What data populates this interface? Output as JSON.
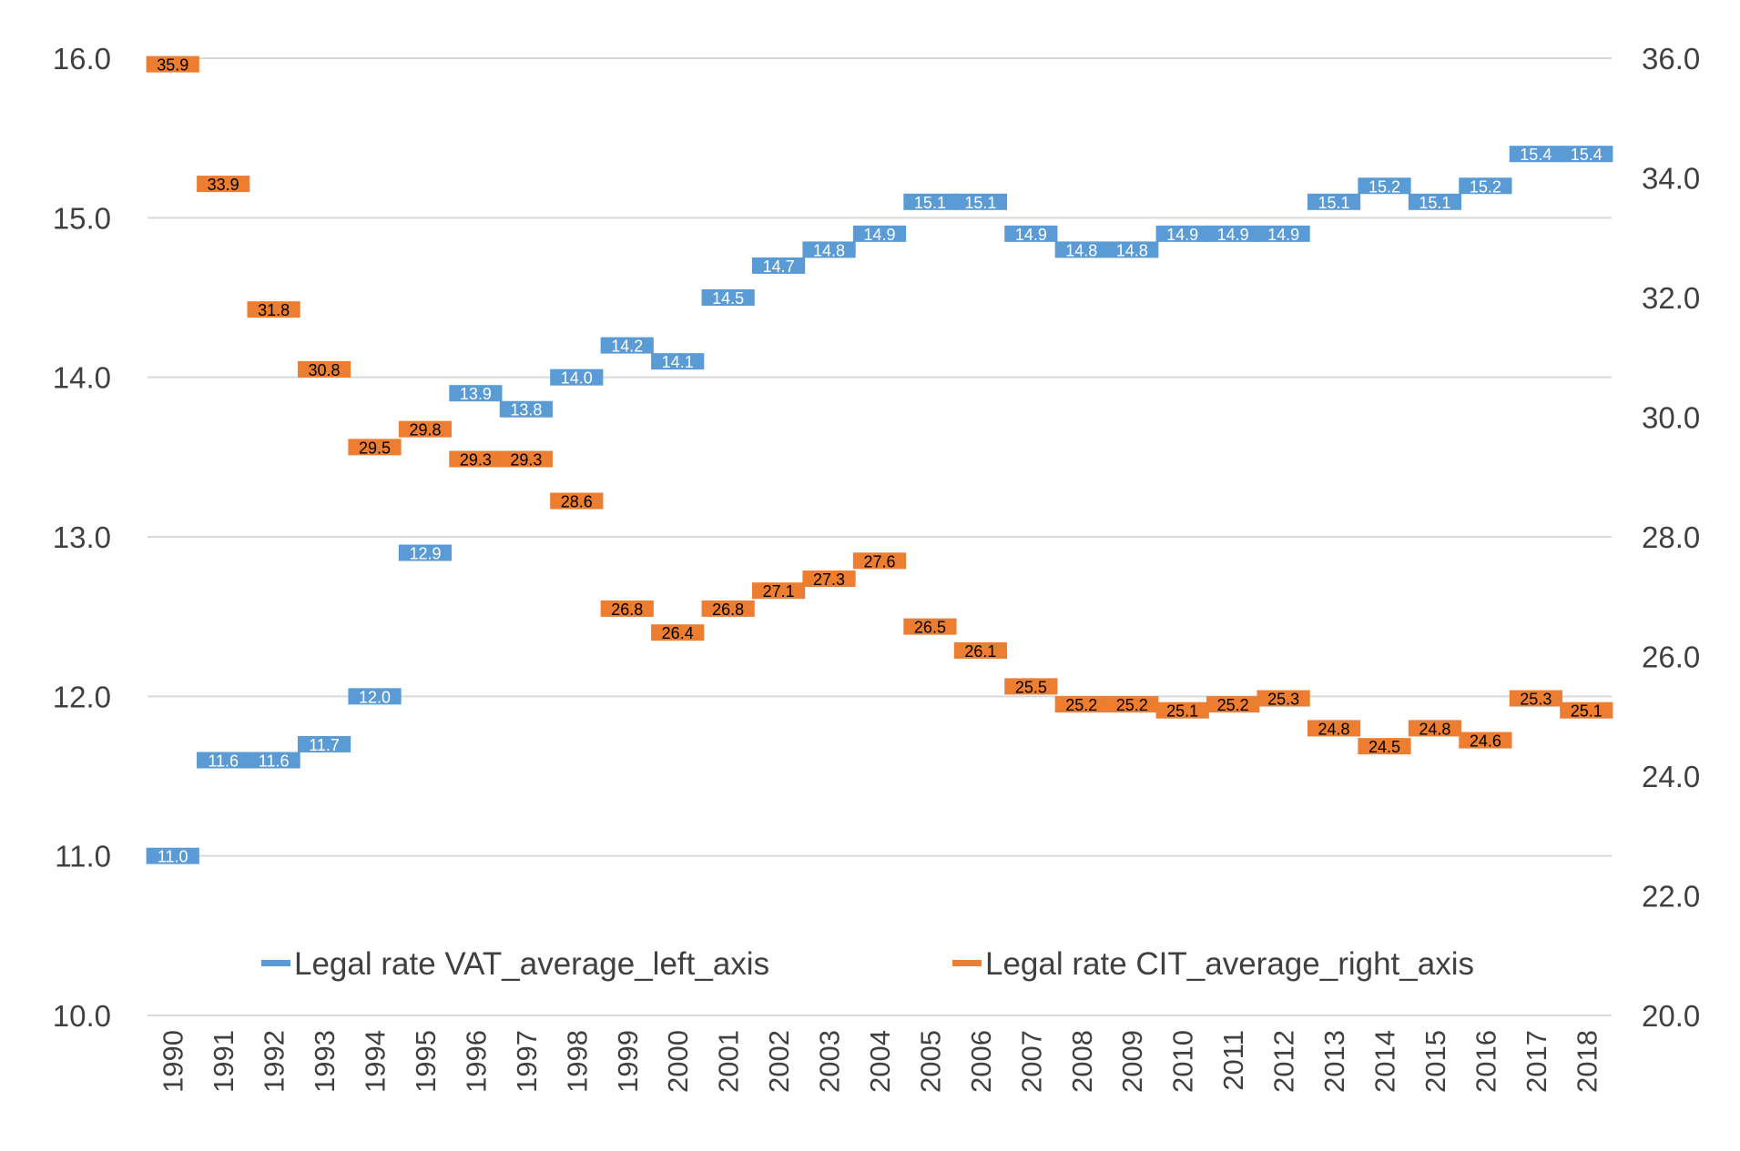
{
  "chart_data": {
    "type": "line",
    "categories": [
      "1990",
      "1991",
      "1992",
      "1993",
      "1994",
      "1995",
      "1996",
      "1997",
      "1998",
      "1999",
      "2000",
      "2001",
      "2002",
      "2003",
      "2004",
      "2005",
      "2006",
      "2007",
      "2008",
      "2009",
      "2010",
      "2011",
      "2012",
      "2013",
      "2014",
      "2015",
      "2016",
      "2017",
      "2018"
    ],
    "series": [
      {
        "name": "Legal rate VAT_average_left_axis",
        "axis": "left",
        "color": "#5B9BD5",
        "values": [
          11.0,
          11.6,
          11.6,
          11.7,
          12.0,
          12.9,
          13.9,
          13.8,
          14.0,
          14.2,
          14.1,
          14.5,
          14.7,
          14.8,
          14.9,
          15.1,
          15.1,
          14.9,
          14.8,
          14.8,
          14.9,
          14.9,
          14.9,
          15.1,
          15.2,
          15.1,
          15.2,
          15.4,
          15.4
        ]
      },
      {
        "name": "Legal rate CIT_average_right_axis",
        "axis": "right",
        "color": "#ED7D31",
        "values": [
          35.9,
          33.9,
          31.8,
          30.8,
          29.5,
          29.8,
          29.3,
          29.3,
          28.6,
          26.8,
          26.4,
          26.8,
          27.1,
          27.3,
          27.6,
          26.5,
          26.1,
          25.5,
          25.2,
          25.2,
          25.1,
          25.2,
          25.3,
          24.8,
          24.5,
          24.8,
          24.6,
          25.3,
          25.1
        ]
      }
    ],
    "y_left": {
      "min": 10,
      "max": 16,
      "step": 1,
      "ticks": [
        "10.0",
        "11.0",
        "12.0",
        "13.0",
        "14.0",
        "15.0",
        "16.0"
      ]
    },
    "y_right": {
      "min": 20,
      "max": 36,
      "step": 2,
      "ticks": [
        "20.0",
        "22.0",
        "24.0",
        "26.0",
        "28.0",
        "30.0",
        "32.0",
        "34.0",
        "36.0"
      ]
    },
    "legend_position": "bottom-inside",
    "grid": true,
    "title": "",
    "xlabel": "",
    "ylabel": ""
  }
}
